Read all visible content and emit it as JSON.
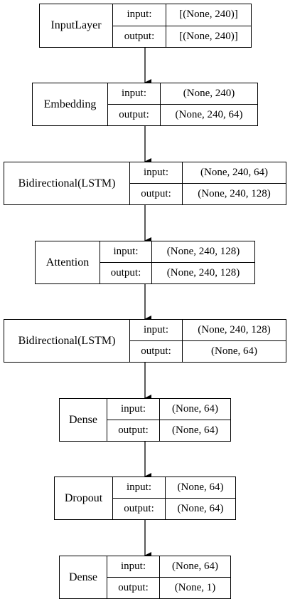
{
  "layers": [
    {
      "name": "InputLayer",
      "input_label": "input:",
      "output_label": "output:",
      "input": "[(None, 240)]",
      "output": "[(None, 240)]"
    },
    {
      "name": "Embedding",
      "input_label": "input:",
      "output_label": "output:",
      "input": "(None, 240)",
      "output": "(None, 240, 64)"
    },
    {
      "name": "Bidirectional(LSTM)",
      "input_label": "input:",
      "output_label": "output:",
      "input": "(None, 240, 64)",
      "output": "(None, 240, 128)"
    },
    {
      "name": "Attention",
      "input_label": "input:",
      "output_label": "output:",
      "input": "(None, 240, 128)",
      "output": "(None, 240, 128)"
    },
    {
      "name": "Bidirectional(LSTM)",
      "input_label": "input:",
      "output_label": "output:",
      "input": "(None, 240, 128)",
      "output": "(None, 64)"
    },
    {
      "name": "Dense",
      "input_label": "input:",
      "output_label": "output:",
      "input": "(None, 64)",
      "output": "(None, 64)"
    },
    {
      "name": "Dropout",
      "input_label": "input:",
      "output_label": "output:",
      "input": "(None, 64)",
      "output": "(None, 64)"
    },
    {
      "name": "Dense",
      "input_label": "input:",
      "output_label": "output:",
      "input": "(None, 64)",
      "output": "(None, 1)"
    }
  ]
}
